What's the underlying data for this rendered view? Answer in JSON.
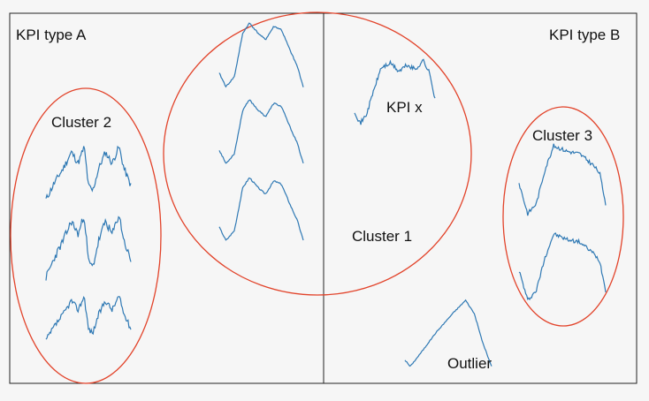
{
  "panels": {
    "left_title": "KPI type A",
    "right_title": "KPI type B"
  },
  "clusters": {
    "cluster_2": "Cluster 2",
    "cluster_1": "Cluster 1",
    "cluster_3": "Cluster 3",
    "outlier": "Outlier",
    "kpi_x": "KPI x"
  },
  "colors": {
    "background": "#f6f6f6",
    "frame": "#222222",
    "cluster_outline": "#e2432a",
    "series_line": "#2f79b4",
    "text": "#111111"
  }
}
